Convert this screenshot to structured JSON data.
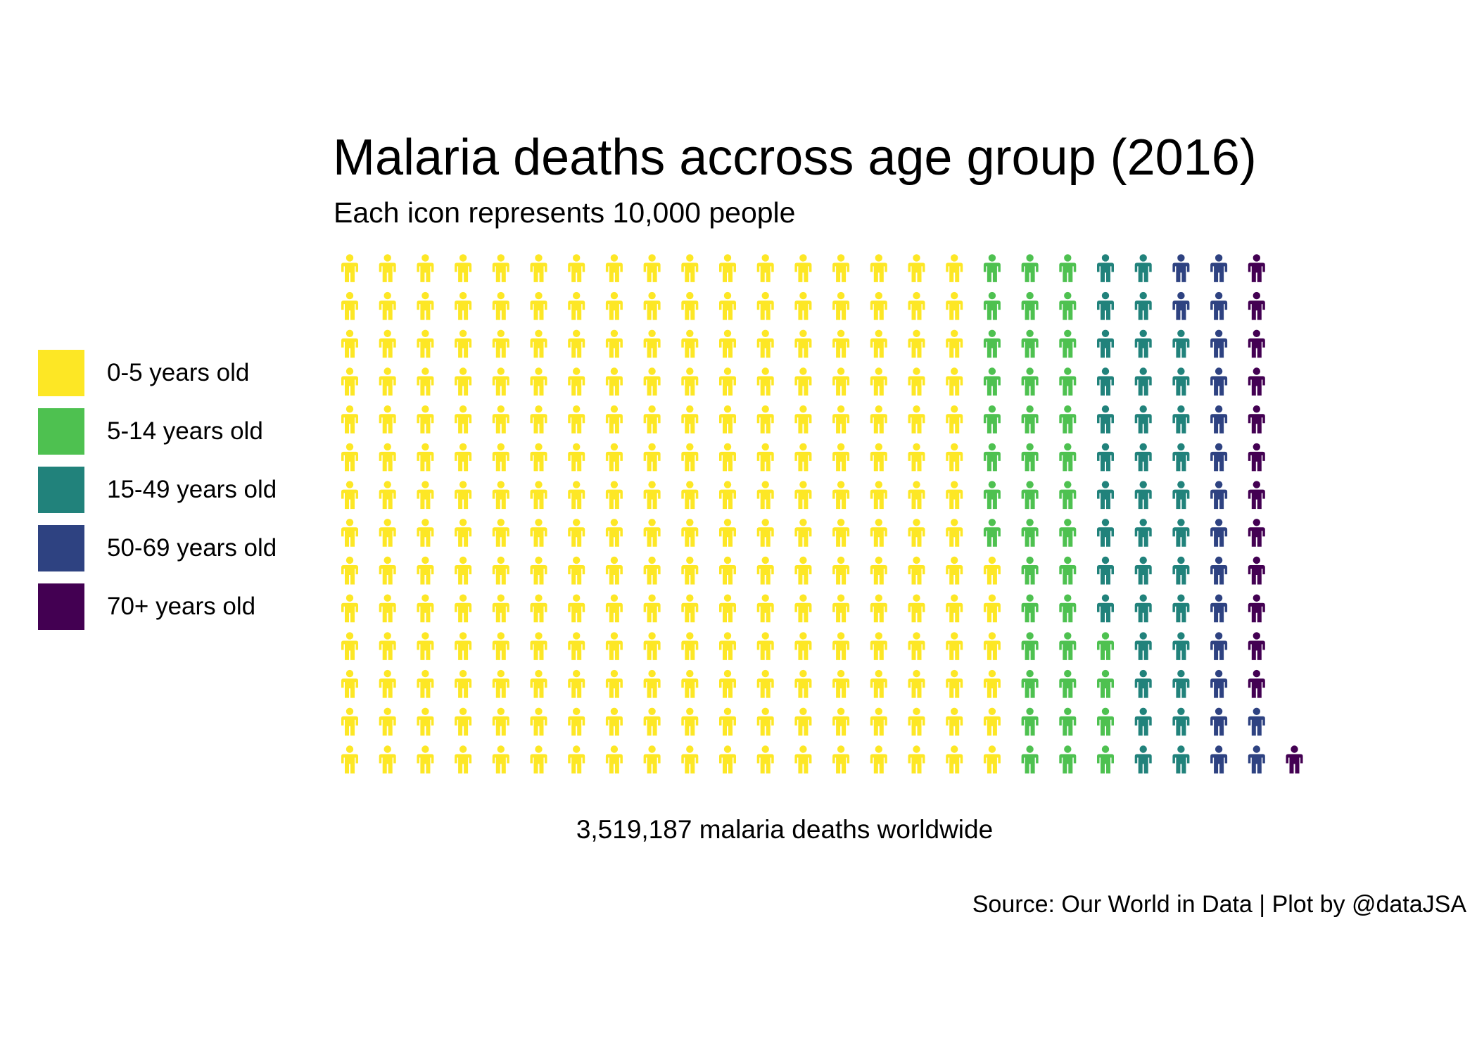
{
  "chart_data": {
    "type": "waffle",
    "title": "Malaria deaths accross age group (2016)",
    "subtitle": "Each icon represents 10,000 people",
    "xlabel": "3,519,187 malaria deaths worldwide",
    "caption": "Source: Our World in Data | Plot by @dataJSA",
    "icon": "person-icon",
    "icon_value": 10000,
    "rows_per_column": 14,
    "legend_position": "left",
    "categories": [
      {
        "label": "0-5 years old",
        "color": "#FDE725",
        "icons": 244
      },
      {
        "label": "5-14 years old",
        "color": "#4EC150",
        "icons": 40
      },
      {
        "label": "15-49 years old",
        "color": "#21827B",
        "icons": 36
      },
      {
        "label": "50-69 years old",
        "color": "#2E4281",
        "icons": 18
      },
      {
        "label": "70+ years old",
        "color": "#430052",
        "icons": 13
      }
    ]
  }
}
